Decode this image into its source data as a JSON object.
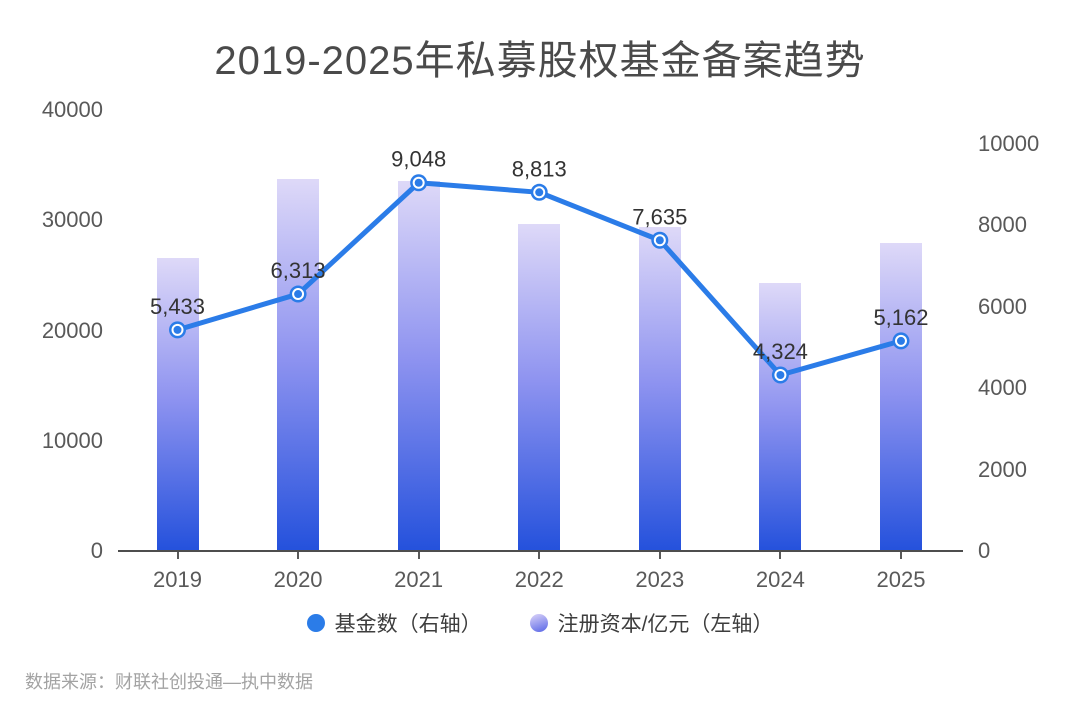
{
  "title": "2019-2025年私募股权基金备案趋势",
  "source": "数据来源：财联社创投通—执中数据",
  "legend": [
    {
      "label": "基金数（右轴）",
      "swatch": "blue-dot"
    },
    {
      "label": "注册资本/亿元（左轴）",
      "swatch": "gradient-dot"
    }
  ],
  "colors": {
    "line": "#2b7ce8",
    "marker_fill": "#2b7ce8",
    "marker_ring": "#ffffff",
    "bar_gradient_top": "#ded9f8",
    "bar_gradient_mid": "#8e93f0",
    "bar_gradient_bottom": "#2451dc",
    "axis_text": "#595959",
    "axis_line": "#4d4d4d",
    "point_label_text": "#333333",
    "title_text": "#4a4a4a",
    "source_text": "#a3a3a3"
  },
  "chart_data": {
    "type": "bar",
    "subtype": "dual-axis bar + line combo",
    "title": "2019-2025年私募股权基金备案趋势",
    "categories": [
      "2019",
      "2020",
      "2021",
      "2022",
      "2023",
      "2024",
      "2025"
    ],
    "series": [
      {
        "name": "注册资本/亿元（左轴）",
        "type": "bar",
        "axis": "left",
        "estimated": true,
        "values": [
          26600,
          33700,
          33550,
          29700,
          29400,
          24300,
          27900
        ]
      },
      {
        "name": "基金数（右轴）",
        "type": "line",
        "axis": "right",
        "estimated": false,
        "values": [
          5433,
          6313,
          9048,
          8813,
          7635,
          4324,
          5162
        ],
        "point_labels": [
          "5,433",
          "6,313",
          "9,048",
          "8,813",
          "7,635",
          "4,324",
          "5,162"
        ]
      }
    ],
    "left_axis": {
      "min": 0,
      "max": 40000,
      "ticks": [
        0,
        10000,
        20000,
        30000,
        40000
      ]
    },
    "right_axis": {
      "min": 0,
      "max": 10000,
      "ticks": [
        0,
        2000,
        4000,
        6000,
        8000,
        10000
      ]
    },
    "grid": false,
    "legend_position": "bottom",
    "xlabel": "",
    "ylabel": ""
  }
}
